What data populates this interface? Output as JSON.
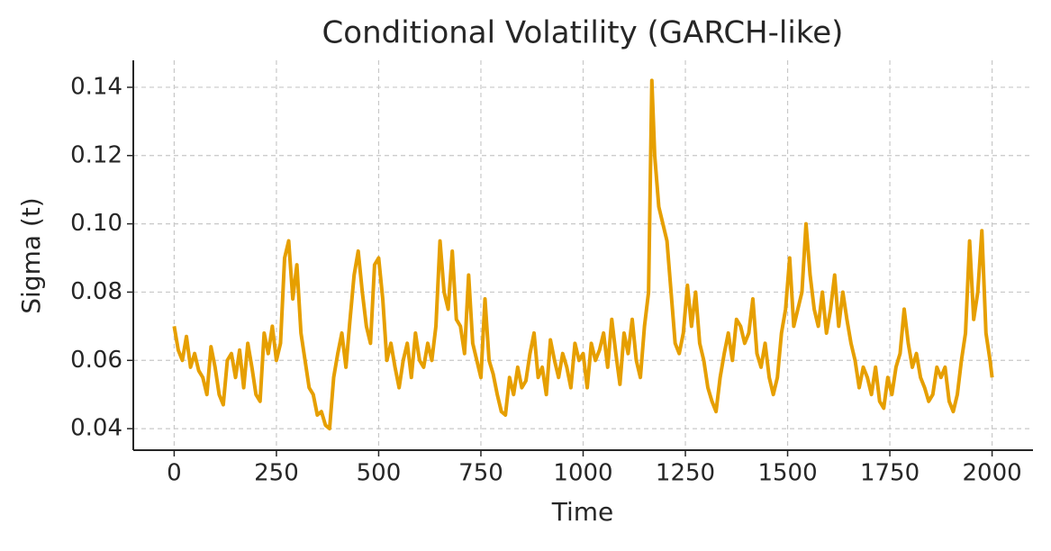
{
  "chart_data": {
    "type": "line",
    "title": "Conditional Volatility (GARCH-like)",
    "xlabel": "Time",
    "ylabel": "Sigma (t)",
    "xlim": [
      -100,
      2100
    ],
    "ylim": [
      0.0337,
      0.1479
    ],
    "xticks": [
      0,
      250,
      500,
      750,
      1000,
      1250,
      1500,
      1750,
      2000
    ],
    "yticks": [
      0.04,
      0.06,
      0.08,
      {
        "value": 0.1,
        "label": "0.10"
      },
      0.12,
      0.14
    ],
    "grid": true,
    "x": [
      0,
      10,
      20,
      30,
      40,
      50,
      60,
      70,
      80,
      90,
      100,
      110,
      120,
      130,
      140,
      150,
      160,
      170,
      180,
      190,
      200,
      210,
      220,
      230,
      240,
      250,
      260,
      270,
      280,
      290,
      300,
      310,
      320,
      330,
      340,
      350,
      360,
      370,
      380,
      390,
      400,
      410,
      420,
      430,
      440,
      450,
      460,
      470,
      480,
      490,
      500,
      510,
      520,
      530,
      540,
      550,
      560,
      570,
      580,
      590,
      600,
      610,
      620,
      630,
      640,
      650,
      660,
      670,
      680,
      690,
      700,
      710,
      720,
      730,
      740,
      750,
      760,
      770,
      780,
      790,
      800,
      810,
      820,
      830,
      840,
      850,
      860,
      870,
      880,
      890,
      900,
      910,
      920,
      930,
      940,
      950,
      960,
      970,
      980,
      990,
      1000,
      1010,
      1020,
      1030,
      1040,
      1050,
      1060,
      1070,
      1080,
      1090,
      1100,
      1110,
      1120,
      1130,
      1140,
      1150,
      1160,
      1168,
      1175,
      1185,
      1195,
      1205,
      1215,
      1225,
      1235,
      1245,
      1255,
      1265,
      1275,
      1285,
      1295,
      1305,
      1315,
      1325,
      1335,
      1345,
      1355,
      1365,
      1375,
      1385,
      1395,
      1405,
      1415,
      1425,
      1435,
      1445,
      1455,
      1465,
      1475,
      1485,
      1495,
      1505,
      1515,
      1525,
      1535,
      1545,
      1555,
      1565,
      1575,
      1585,
      1595,
      1605,
      1615,
      1625,
      1635,
      1645,
      1655,
      1665,
      1675,
      1685,
      1695,
      1705,
      1715,
      1725,
      1735,
      1745,
      1755,
      1765,
      1775,
      1785,
      1795,
      1805,
      1815,
      1825,
      1835,
      1845,
      1855,
      1865,
      1875,
      1885,
      1895,
      1905,
      1915,
      1925,
      1935,
      1945,
      1955,
      1965,
      1975,
      1985,
      1995,
      2000
    ],
    "series": [
      {
        "name": "Sigma (t)",
        "color": "#e69f00",
        "values": [
          0.07,
          0.063,
          0.06,
          0.067,
          0.058,
          0.062,
          0.057,
          0.055,
          0.05,
          0.064,
          0.058,
          0.05,
          0.047,
          0.06,
          0.062,
          0.055,
          0.063,
          0.052,
          0.065,
          0.058,
          0.05,
          0.048,
          0.068,
          0.062,
          0.07,
          0.06,
          0.065,
          0.09,
          0.095,
          0.078,
          0.088,
          0.068,
          0.06,
          0.052,
          0.05,
          0.044,
          0.045,
          0.041,
          0.04,
          0.055,
          0.062,
          0.068,
          0.058,
          0.072,
          0.085,
          0.092,
          0.08,
          0.07,
          0.065,
          0.088,
          0.09,
          0.078,
          0.06,
          0.065,
          0.058,
          0.052,
          0.06,
          0.065,
          0.055,
          0.068,
          0.06,
          0.058,
          0.065,
          0.06,
          0.07,
          0.095,
          0.08,
          0.075,
          0.092,
          0.072,
          0.07,
          0.062,
          0.085,
          0.065,
          0.06,
          0.055,
          0.078,
          0.06,
          0.056,
          0.05,
          0.045,
          0.044,
          0.055,
          0.05,
          0.058,
          0.052,
          0.054,
          0.062,
          0.068,
          0.055,
          0.058,
          0.05,
          0.066,
          0.06,
          0.055,
          0.062,
          0.058,
          0.052,
          0.065,
          0.06,
          0.062,
          0.052,
          0.065,
          0.06,
          0.063,
          0.068,
          0.058,
          0.072,
          0.062,
          0.053,
          0.068,
          0.062,
          0.072,
          0.06,
          0.055,
          0.07,
          0.08,
          0.142,
          0.12,
          0.105,
          0.1,
          0.095,
          0.08,
          0.065,
          0.062,
          0.068,
          0.082,
          0.07,
          0.08,
          0.065,
          0.06,
          0.052,
          0.048,
          0.045,
          0.055,
          0.062,
          0.068,
          0.06,
          0.072,
          0.07,
          0.065,
          0.068,
          0.078,
          0.062,
          0.058,
          0.065,
          0.055,
          0.05,
          0.055,
          0.068,
          0.075,
          0.09,
          0.07,
          0.075,
          0.08,
          0.1,
          0.085,
          0.075,
          0.07,
          0.08,
          0.068,
          0.075,
          0.085,
          0.07,
          0.08,
          0.072,
          0.065,
          0.06,
          0.052,
          0.058,
          0.055,
          0.05,
          0.058,
          0.048,
          0.046,
          0.055,
          0.05,
          0.058,
          0.062,
          0.075,
          0.065,
          0.058,
          0.062,
          0.055,
          0.052,
          0.048,
          0.05,
          0.058,
          0.055,
          0.058,
          0.048,
          0.045,
          0.05,
          0.06,
          0.068,
          0.095,
          0.072,
          0.08,
          0.098,
          0.068,
          0.06,
          0.055
        ]
      }
    ]
  }
}
